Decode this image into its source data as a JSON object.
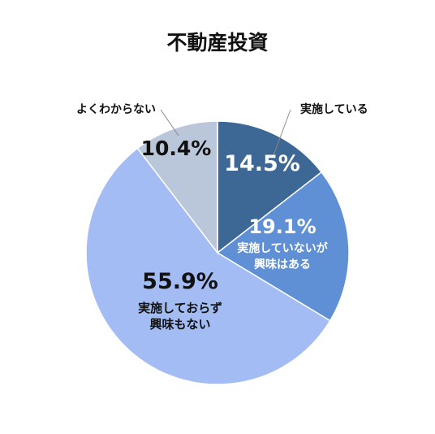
{
  "chart_data": {
    "type": "pie",
    "title": "不動産投資",
    "start_angle_deg": 0,
    "direction": "clockwise",
    "slices": [
      {
        "key": "implementing",
        "label": "実施している",
        "value": 14.5,
        "value_text": "14.5%",
        "color": "#3D6794",
        "text_color": "#ffffff"
      },
      {
        "key": "interested",
        "label": "実施していないが興味はある",
        "label_lines": [
          "実施していないが",
          "興味はある"
        ],
        "value": 19.1,
        "value_text": "19.1%",
        "color": "#5F8FD4",
        "text_color": "#ffffff"
      },
      {
        "key": "not_interested",
        "label": "実施しておらず興味もない",
        "label_lines": [
          "実施しておらず",
          "興味もない"
        ],
        "value": 55.9,
        "value_text": "55.9%",
        "color": "#A3BCF3",
        "text_color": "#111111"
      },
      {
        "key": "unknown",
        "label": "よくわからない",
        "value": 10.4,
        "value_text": "10.4%",
        "color": "#BAC6D9",
        "text_color": "#111111"
      }
    ]
  }
}
